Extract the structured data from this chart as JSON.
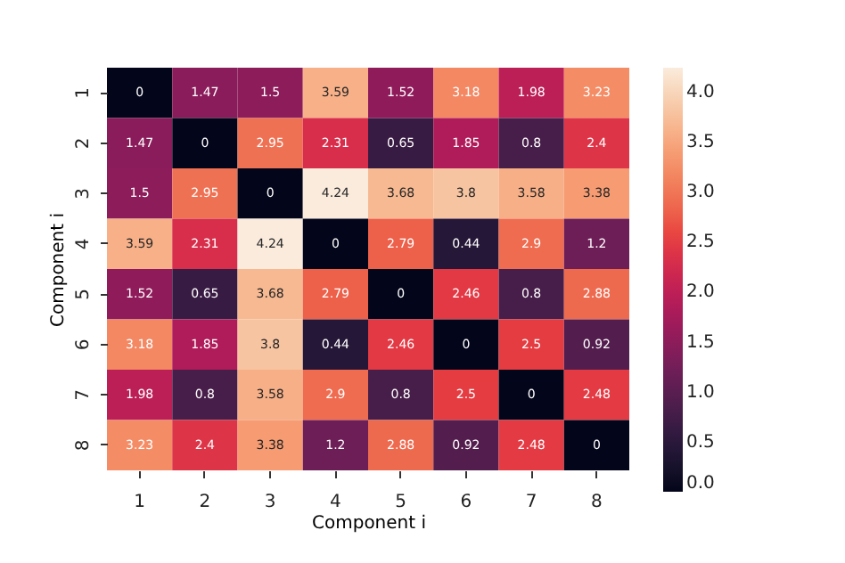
{
  "chart_data": {
    "type": "heatmap",
    "xlabel": "Component i",
    "ylabel": "Component i",
    "categories": [
      "1",
      "2",
      "3",
      "4",
      "5",
      "6",
      "7",
      "8"
    ],
    "y_categories": [
      "1",
      "2",
      "3",
      "4",
      "5",
      "6",
      "7",
      "8"
    ],
    "cells": [
      [
        0,
        1.47,
        1.5,
        3.59,
        1.52,
        3.18,
        1.98,
        3.23
      ],
      [
        1.47,
        0,
        2.95,
        2.31,
        0.65,
        1.85,
        0.8,
        2.4
      ],
      [
        1.5,
        2.95,
        0,
        4.24,
        3.68,
        3.8,
        3.58,
        3.38
      ],
      [
        3.59,
        2.31,
        4.24,
        0,
        2.79,
        0.44,
        2.9,
        1.2
      ],
      [
        1.52,
        0.65,
        3.68,
        2.79,
        0,
        2.46,
        0.8,
        2.88
      ],
      [
        3.18,
        1.85,
        3.8,
        0.44,
        2.46,
        0,
        2.5,
        0.92
      ],
      [
        1.98,
        0.8,
        3.58,
        2.9,
        0.8,
        2.5,
        0,
        2.48
      ],
      [
        3.23,
        2.4,
        3.38,
        1.2,
        2.88,
        0.92,
        2.48,
        0
      ]
    ],
    "clim": [
      0,
      4.24
    ],
    "cticks": [
      {
        "value": 0,
        "label": "0.0"
      },
      0.5,
      {
        "value": 1,
        "label": "1.0"
      },
      1.5,
      {
        "value": 2,
        "label": "2.0"
      },
      2.5,
      {
        "value": 3,
        "label": "3.0"
      },
      3.5,
      {
        "value": 4,
        "label": "4.0"
      }
    ],
    "data_labels": true
  }
}
